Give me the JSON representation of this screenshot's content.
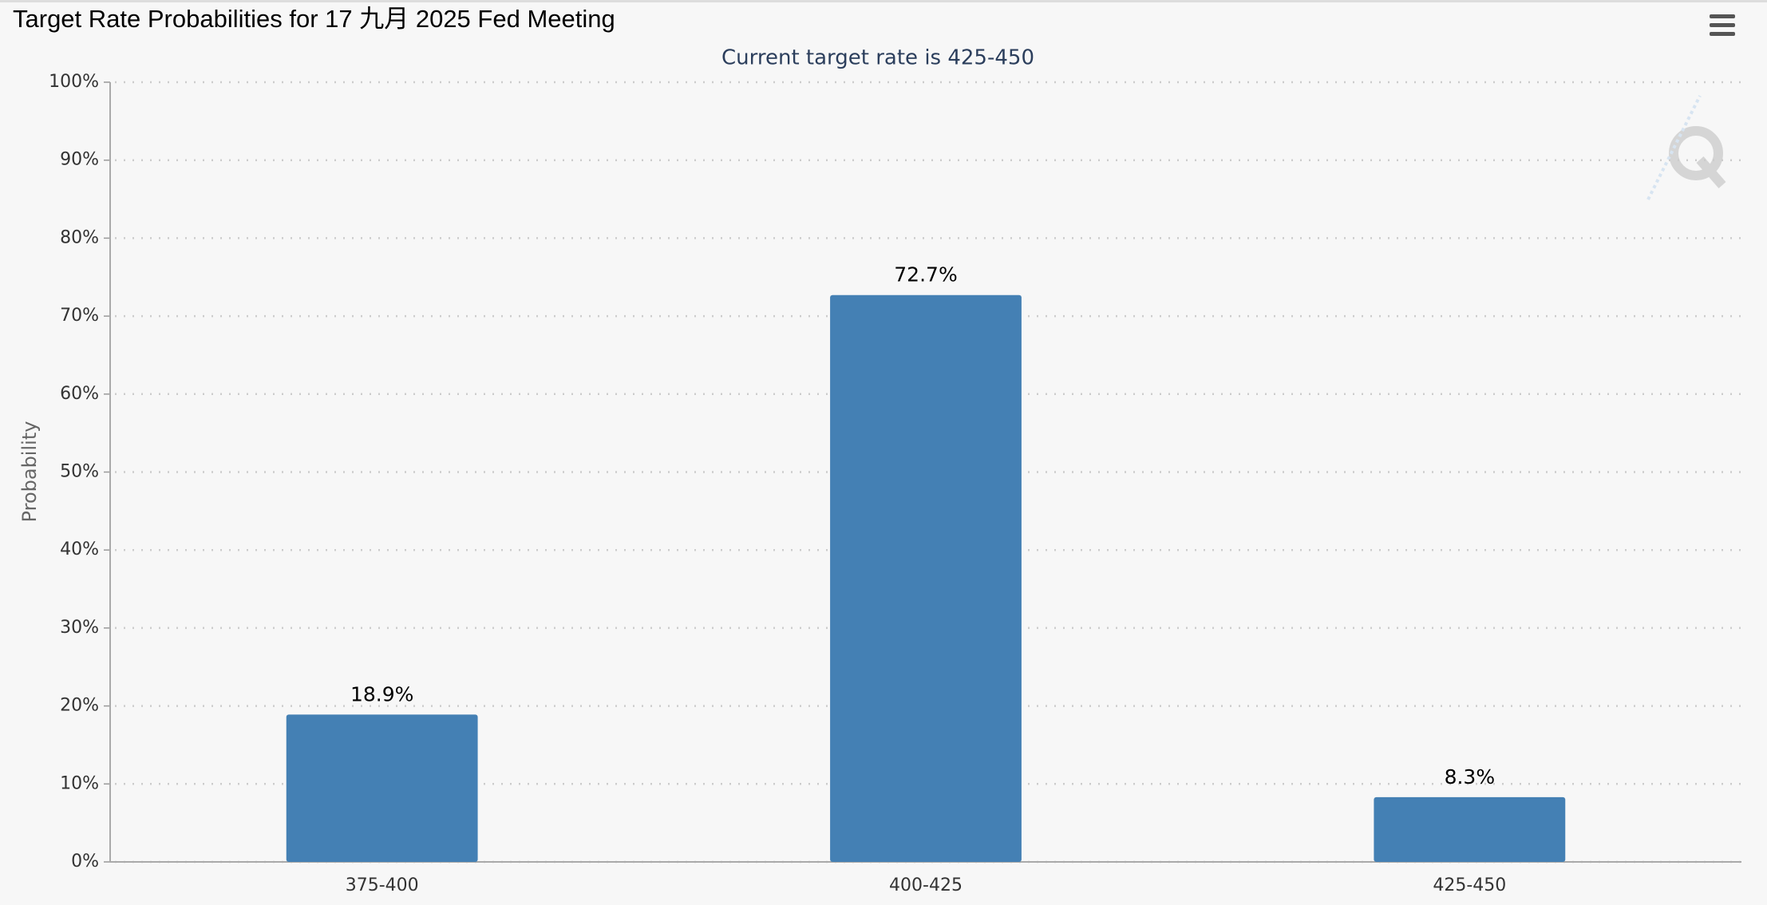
{
  "chart_data": {
    "type": "bar",
    "title": "Target Rate Probabilities for 17 九月 2025 Fed Meeting",
    "subtitle": "Current target rate is 425-450",
    "y_label": "Probability",
    "categories": [
      "375-400",
      "400-425",
      "425-450"
    ],
    "values": [
      18.9,
      72.7,
      8.3
    ],
    "value_labels": [
      "18.9%",
      "72.7%",
      "8.3%"
    ],
    "color": "#4480b4",
    "ylim": [
      0,
      100
    ],
    "yticks": [
      {
        "value": 0,
        "label": "0%"
      },
      {
        "value": 10,
        "label": "10%"
      },
      {
        "value": 20,
        "label": "20%"
      },
      {
        "value": 30,
        "label": "30%"
      },
      {
        "value": 40,
        "label": "40%"
      },
      {
        "value": 50,
        "label": "50%"
      },
      {
        "value": 60,
        "label": "60%"
      },
      {
        "value": 70,
        "label": "70%"
      },
      {
        "value": 80,
        "label": "80%"
      },
      {
        "value": 90,
        "label": "90%"
      },
      {
        "value": 100,
        "label": "100%"
      }
    ],
    "grid": true
  }
}
